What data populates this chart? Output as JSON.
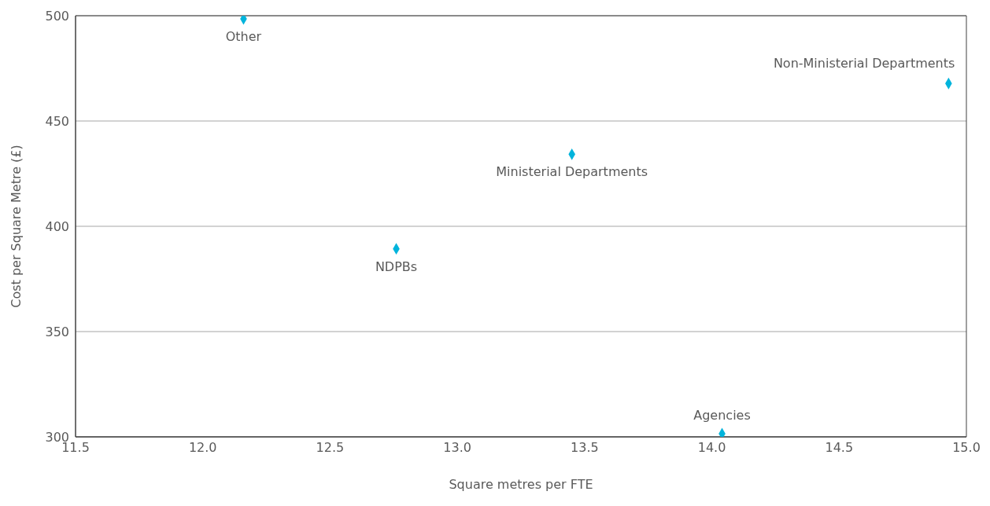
{
  "chart_data": {
    "type": "scatter",
    "xlabel": "Square metres per FTE",
    "ylabel": "Cost per Square Metre (£)",
    "series": [
      {
        "name": "Other",
        "color": "#00b4dc",
        "x": [
          12.16
        ],
        "values": [
          498.5
        ]
      },
      {
        "name": "Non-Ministerial Departments",
        "color": "#00b4dc",
        "x": [
          14.93
        ],
        "values": [
          467.8
        ]
      },
      {
        "name": "Ministerial Departments",
        "color": "#00b4dc",
        "x": [
          13.45
        ],
        "values": [
          434.2
        ]
      },
      {
        "name": "NDPBs",
        "color": "#00b4dc",
        "x": [
          12.76
        ],
        "values": [
          389.3
        ]
      },
      {
        "name": "Agencies",
        "color": "#00b4dc",
        "x": [
          14.04
        ],
        "values": [
          301.5
        ]
      }
    ],
    "xlim": [
      11.5,
      15.0
    ],
    "xticks": [
      {
        "value": 11.5,
        "label": "11.5"
      },
      {
        "value": 12,
        "label": "12.0"
      },
      {
        "value": 12.5,
        "label": "12.5"
      },
      {
        "value": 13,
        "label": "13.0"
      },
      {
        "value": 13.5,
        "label": "13.5"
      },
      {
        "value": 14,
        "label": "14.0"
      },
      {
        "value": 14.5,
        "label": "14.5"
      },
      {
        "value": 15,
        "label": "15.0"
      }
    ],
    "ylim": [
      300,
      500
    ],
    "yticks": [
      300,
      350,
      400,
      450,
      500
    ],
    "grid": "y",
    "legend": false,
    "marker": "diamond"
  }
}
